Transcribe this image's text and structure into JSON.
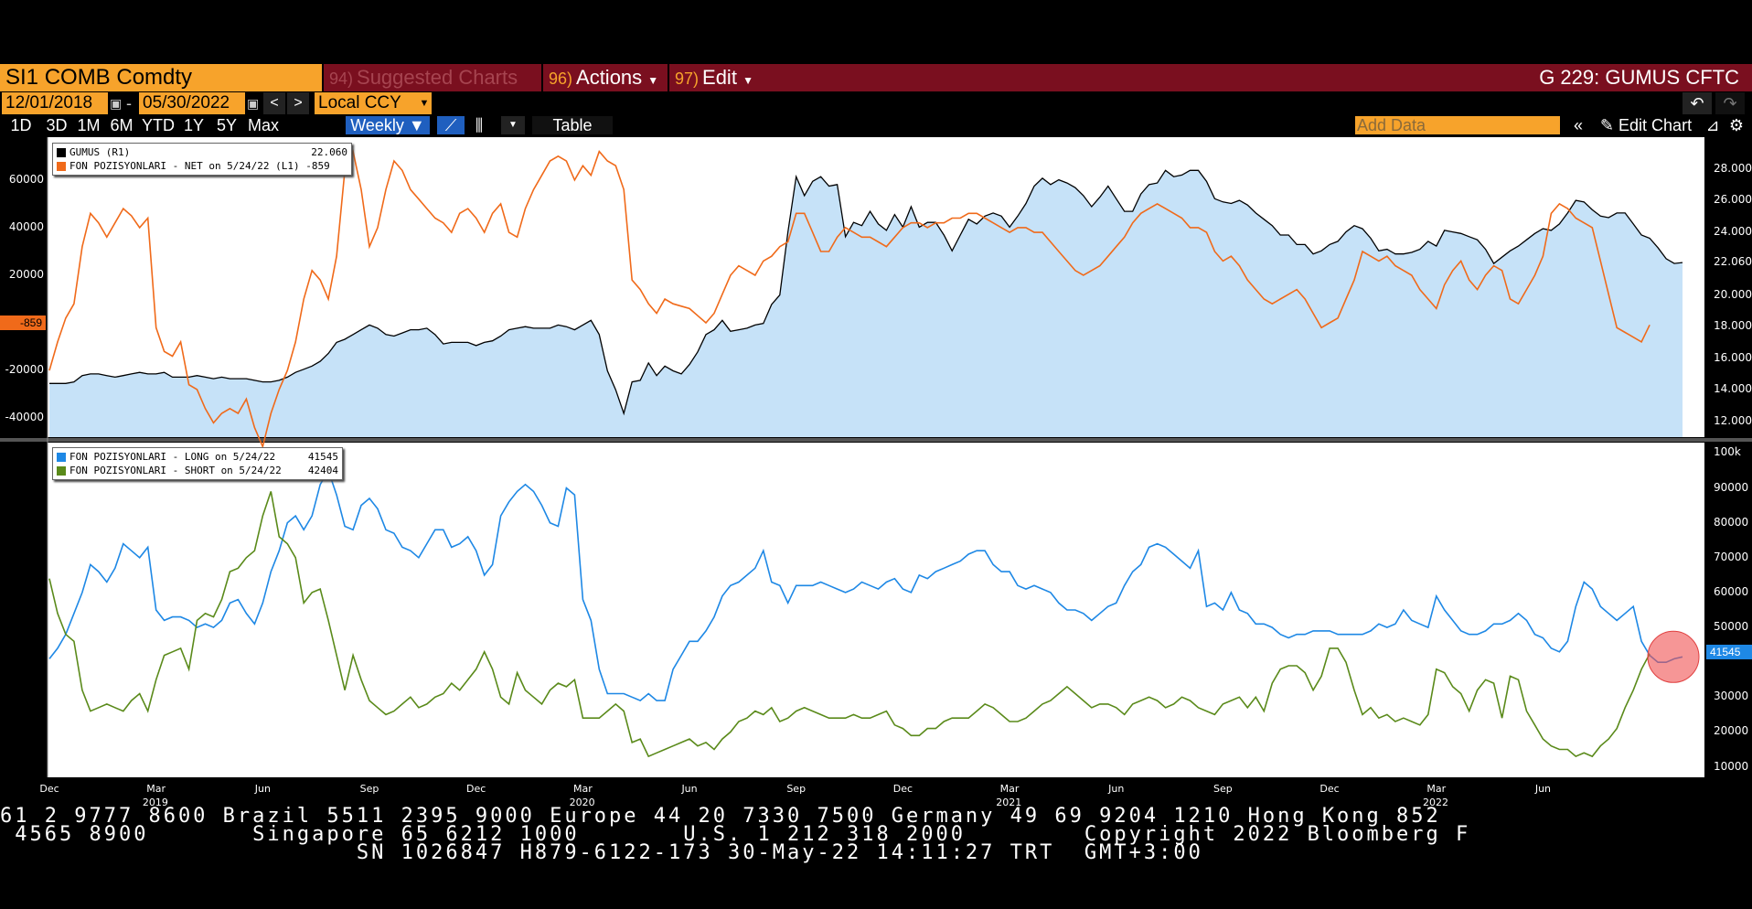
{
  "header": {
    "ticker": "SI1 COMB Comdty",
    "suggested_num": "94)",
    "suggested_label": "Suggested Charts",
    "actions_num": "96)",
    "actions_label": "Actions",
    "edit_num": "97)",
    "edit_label": "Edit",
    "chart_title": "G 229: GUMUS CFTC"
  },
  "controls": {
    "start_date": "12/01/2018",
    "date_sep": "-",
    "end_date": "05/30/2022",
    "currency": "Local CCY",
    "ranges": [
      "1D",
      "3D",
      "1M",
      "6M",
      "YTD",
      "1Y",
      "5Y",
      "Max"
    ],
    "frequency": "Weekly",
    "table_label": "Table",
    "add_data_placeholder": "Add Data",
    "edit_chart_label": "Edit Chart"
  },
  "upper_panel": {
    "legend": [
      {
        "label": "GUMUS (R1)",
        "value": "22.060",
        "color": "#000000"
      },
      {
        "label": "FON POZISYONLARI - NET on 5/24/22 (L1)",
        "value": "-859",
        "color": "#f06a1a"
      }
    ],
    "left_ticks": [
      "60000",
      "40000",
      "20000",
      "-20000",
      "-40000"
    ],
    "right_ticks": [
      "28.000",
      "26.000",
      "24.000",
      "22.060",
      "20.000",
      "18.000",
      "16.000",
      "14.000",
      "12.000"
    ],
    "left_marker": "-859"
  },
  "lower_panel": {
    "legend": [
      {
        "label": "FON POZISYONLARI - LONG on 5/24/22",
        "value": "41545",
        "color": "#1e88e5"
      },
      {
        "label": "FON POZISYONLARI - SHORT on 5/24/22",
        "value": "42404",
        "color": "#5a8a1a"
      }
    ],
    "right_ticks": [
      "100k",
      "90000",
      "80000",
      "70000",
      "60000",
      "50000",
      "30000",
      "20000",
      "10000"
    ],
    "right_marker": "41545"
  },
  "x_axis": {
    "months": [
      "Dec",
      "Mar",
      "Jun",
      "Sep",
      "Dec",
      "Mar",
      "Jun",
      "Sep",
      "Dec",
      "Mar",
      "Jun",
      "Sep",
      "Dec",
      "Mar",
      "Jun"
    ],
    "years": [
      "2019",
      "2020",
      "2021",
      "2022"
    ]
  },
  "footer": {
    "line1": "61 2 9777 8600 Brazil 5511 2395 9000 Europe 44 20 7330 7500 Germany 49 69 9204 1210 Hong Kong 852",
    "line2": " 4565 8900       Singapore 65 6212 1000       U.S. 1 212 318 2000        Copyright 2022 Bloomberg F",
    "line3": "                        SN 1026847 H879-6122-173 30-May-22 14:11:27 TRT  GMT+3:00"
  },
  "colors": {
    "price": "#000000",
    "price_fill": "#c6e2f8",
    "net": "#f06a1a",
    "long": "#1e88e5",
    "short": "#5a8a1a",
    "accent": "#f7a32b",
    "bar": "#7a0f1f"
  },
  "chart_data": [
    {
      "type": "line",
      "title": "",
      "x_start": "2018-12-07",
      "x_step_weeks": 1,
      "series": [
        {
          "name": "GUMUS",
          "axis": "right",
          "ylim": [
            11,
            30
          ],
          "values": [
            14.4,
            14.4,
            14.4,
            14.5,
            14.9,
            15.0,
            15.0,
            14.9,
            14.8,
            14.9,
            15.0,
            15.1,
            15.0,
            15.0,
            15.1,
            14.8,
            14.8,
            14.8,
            14.9,
            14.8,
            14.7,
            14.8,
            14.7,
            14.7,
            14.7,
            14.6,
            14.5,
            14.5,
            14.6,
            14.8,
            15.1,
            15.3,
            15.5,
            15.8,
            16.3,
            17.0,
            17.2,
            17.5,
            17.8,
            18.1,
            17.9,
            17.5,
            17.4,
            17.6,
            17.8,
            17.8,
            17.9,
            17.5,
            16.9,
            17.0,
            17.0,
            17.0,
            16.8,
            17.0,
            17.1,
            17.4,
            17.8,
            17.9,
            18.0,
            17.9,
            17.9,
            17.9,
            18.1,
            18.0,
            17.8,
            18.1,
            18.4,
            17.5,
            15.2,
            14.0,
            12.5,
            14.5,
            14.6,
            15.7,
            14.9,
            15.5,
            15.2,
            15.0,
            15.6,
            16.4,
            17.5,
            17.8,
            18.4,
            17.7,
            17.8,
            17.9,
            18.1,
            18.2,
            19.4,
            20.0,
            24.0,
            27.5,
            26.3,
            27.2,
            27.5,
            26.9,
            27.0,
            23.7,
            24.6,
            24.4,
            25.3,
            24.5,
            24.1,
            25.1,
            24.3,
            25.6,
            24.3,
            24.6,
            24.6,
            23.8,
            22.8,
            23.8,
            24.8,
            24.5,
            25.0,
            25.2,
            25.0,
            24.3,
            25.0,
            25.8,
            26.9,
            27.4,
            27.0,
            27.3,
            27.1,
            26.8,
            26.3,
            25.6,
            26.2,
            26.9,
            26.1,
            25.3,
            25.3,
            26.4,
            27.0,
            27.1,
            27.9,
            27.5,
            27.6,
            27.9,
            27.9,
            27.2,
            26.1,
            25.9,
            25.8,
            26.0,
            25.7,
            25.2,
            24.8,
            24.4,
            23.8,
            23.8,
            23.2,
            23.2,
            22.6,
            22.8,
            23.2,
            23.4,
            24.0,
            24.4,
            24.2,
            23.6,
            22.8,
            22.9,
            22.6,
            22.6,
            22.7,
            22.9,
            23.4,
            23.1,
            24.1,
            24.0,
            23.9,
            23.7,
            23.5,
            22.9,
            22.0,
            22.4,
            22.8,
            23.1,
            23.5,
            23.9,
            24.2,
            24.1,
            24.5,
            25.2,
            26.0,
            25.9,
            25.4,
            25.0,
            24.9,
            25.2,
            25.2,
            24.5,
            23.8,
            23.6,
            23.0,
            22.3,
            22.0,
            22.06
          ]
        },
        {
          "name": "FON POZISYONLARI - NET",
          "axis": "left",
          "ylim": [
            -48000,
            78000
          ],
          "values": [
            -20000,
            -8000,
            2000,
            8000,
            32000,
            46000,
            42000,
            36000,
            42000,
            48000,
            45000,
            40000,
            44000,
            -2000,
            -12000,
            -14000,
            -8000,
            -26000,
            -28000,
            -36000,
            -42000,
            -38000,
            -36000,
            -38000,
            -32000,
            -44000,
            -52000,
            -38000,
            -28000,
            -20000,
            -8000,
            10000,
            22000,
            18000,
            10000,
            28000,
            64000,
            72000,
            56000,
            32000,
            40000,
            56000,
            68000,
            64000,
            56000,
            52000,
            48000,
            44000,
            42000,
            38000,
            46000,
            48000,
            44000,
            38000,
            46000,
            50000,
            38000,
            36000,
            48000,
            56000,
            62000,
            68000,
            70000,
            68000,
            60000,
            66000,
            62000,
            72000,
            68000,
            66000,
            56000,
            18000,
            14000,
            8000,
            4000,
            10000,
            8000,
            7000,
            6000,
            3000,
            0,
            4000,
            12000,
            20000,
            24000,
            22000,
            20000,
            26000,
            28000,
            32000,
            34000,
            46000,
            46000,
            38000,
            30000,
            30000,
            36000,
            40000,
            38000,
            36000,
            36000,
            34000,
            32000,
            36000,
            40000,
            42000,
            42000,
            40000,
            42000,
            42000,
            44000,
            44000,
            46000,
            46000,
            44000,
            42000,
            40000,
            38000,
            40000,
            40000,
            38000,
            38000,
            34000,
            30000,
            26000,
            22000,
            20000,
            22000,
            24000,
            28000,
            32000,
            36000,
            42000,
            46000,
            48000,
            50000,
            48000,
            46000,
            44000,
            40000,
            40000,
            38000,
            30000,
            26000,
            28000,
            24000,
            18000,
            14000,
            10000,
            8000,
            10000,
            12000,
            14000,
            10000,
            4000,
            -2000,
            0,
            2000,
            10000,
            18000,
            30000,
            28000,
            26000,
            28000,
            24000,
            22000,
            20000,
            14000,
            10000,
            6000,
            16000,
            22000,
            26000,
            18000,
            14000,
            20000,
            24000,
            22000,
            10000,
            8000,
            14000,
            20000,
            28000,
            46000,
            50000,
            48000,
            44000,
            42000,
            40000,
            26000,
            12000,
            -2000,
            -4000,
            -6000,
            -8000,
            -859
          ]
        }
      ]
    },
    {
      "type": "line",
      "title": "",
      "x_start": "2018-12-07",
      "x_step_weeks": 1,
      "ylim": [
        7000,
        103000
      ],
      "series": [
        {
          "name": "FON POZISYONLARI - LONG",
          "values": [
            41000,
            44000,
            48000,
            54000,
            60000,
            68000,
            66000,
            63000,
            67000,
            74000,
            72000,
            70000,
            73000,
            55000,
            52000,
            53000,
            53000,
            52000,
            50000,
            51000,
            50000,
            52000,
            57000,
            58000,
            54000,
            51000,
            57000,
            66000,
            72000,
            80000,
            82000,
            78000,
            82000,
            91000,
            95000,
            88000,
            79000,
            78000,
            85000,
            87000,
            84000,
            78000,
            77000,
            73000,
            72000,
            70000,
            74000,
            78000,
            78000,
            73000,
            74000,
            76000,
            72000,
            65000,
            68000,
            82000,
            86000,
            89000,
            91000,
            89000,
            85000,
            80000,
            79000,
            90000,
            88000,
            58000,
            52000,
            38000,
            31000,
            31000,
            31000,
            30000,
            29000,
            31000,
            29000,
            29000,
            38000,
            42000,
            46000,
            46000,
            49000,
            53000,
            59000,
            62000,
            63000,
            65000,
            67000,
            72000,
            63000,
            62000,
            57000,
            62000,
            62000,
            62000,
            63000,
            62000,
            61000,
            60000,
            61000,
            63000,
            62000,
            61000,
            63000,
            64000,
            61000,
            60000,
            65000,
            64000,
            66000,
            67000,
            68000,
            69000,
            71000,
            72000,
            72000,
            68000,
            66000,
            66000,
            62000,
            61000,
            62000,
            61000,
            60000,
            57000,
            55000,
            55000,
            54000,
            52000,
            54000,
            56000,
            57000,
            62000,
            66000,
            68000,
            73000,
            74000,
            73000,
            71000,
            69000,
            67000,
            72000,
            56000,
            57000,
            55000,
            60000,
            55000,
            54000,
            51000,
            51000,
            50000,
            48000,
            47000,
            48000,
            48000,
            49000,
            49000,
            49000,
            48000,
            48000,
            48000,
            48000,
            49000,
            51000,
            50000,
            51000,
            55000,
            52000,
            51000,
            50000,
            59000,
            55000,
            52000,
            49000,
            48000,
            48000,
            49000,
            51000,
            51000,
            52000,
            54000,
            52000,
            48000,
            47000,
            44000,
            43000,
            46000,
            56000,
            63000,
            61000,
            56000,
            54000,
            52000,
            54000,
            56000,
            46000,
            42000,
            40000,
            40000,
            41000,
            41545
          ]
        },
        {
          "name": "FON POZISYONLARI - SHORT",
          "values": [
            64000,
            54000,
            48000,
            46000,
            32000,
            26000,
            27000,
            28000,
            27000,
            26000,
            29000,
            31000,
            26000,
            35000,
            42000,
            43000,
            44000,
            38000,
            52000,
            54000,
            53000,
            58000,
            66000,
            67000,
            70000,
            72000,
            82000,
            89000,
            76000,
            74000,
            70000,
            57000,
            60000,
            61000,
            52000,
            42000,
            32000,
            42000,
            35000,
            29000,
            27000,
            25000,
            26000,
            28000,
            30000,
            27000,
            28000,
            30000,
            31000,
            34000,
            32000,
            35000,
            38000,
            43000,
            38000,
            30000,
            28000,
            37000,
            32000,
            30000,
            28000,
            32000,
            34000,
            33000,
            35000,
            24000,
            24000,
            24000,
            26000,
            28000,
            26000,
            17000,
            18000,
            13000,
            14000,
            15000,
            16000,
            17000,
            18000,
            16000,
            17000,
            15000,
            18000,
            20000,
            23000,
            24000,
            26000,
            25000,
            27000,
            23000,
            24000,
            26000,
            27000,
            26000,
            25000,
            24000,
            24000,
            24000,
            25000,
            24000,
            24000,
            25000,
            26000,
            22000,
            21000,
            19000,
            19000,
            21000,
            21000,
            23000,
            24000,
            24000,
            24000,
            26000,
            28000,
            27000,
            25000,
            23000,
            23000,
            24000,
            26000,
            28000,
            29000,
            31000,
            33000,
            31000,
            29000,
            27000,
            28000,
            28000,
            27000,
            25000,
            28000,
            29000,
            30000,
            29000,
            27000,
            28000,
            30000,
            29000,
            27000,
            26000,
            25000,
            28000,
            29000,
            30000,
            27000,
            30000,
            26000,
            34000,
            38000,
            39000,
            39000,
            37000,
            32000,
            36000,
            44000,
            44000,
            40000,
            32000,
            25000,
            27000,
            24000,
            25000,
            23000,
            24000,
            23000,
            22000,
            25000,
            38000,
            37000,
            33000,
            31000,
            26000,
            32000,
            35000,
            34000,
            24000,
            36000,
            35000,
            26000,
            22000,
            18000,
            16000,
            15000,
            15000,
            13000,
            14000,
            13000,
            16000,
            18000,
            21000,
            27000,
            32000,
            38000,
            42404
          ]
        }
      ]
    }
  ]
}
